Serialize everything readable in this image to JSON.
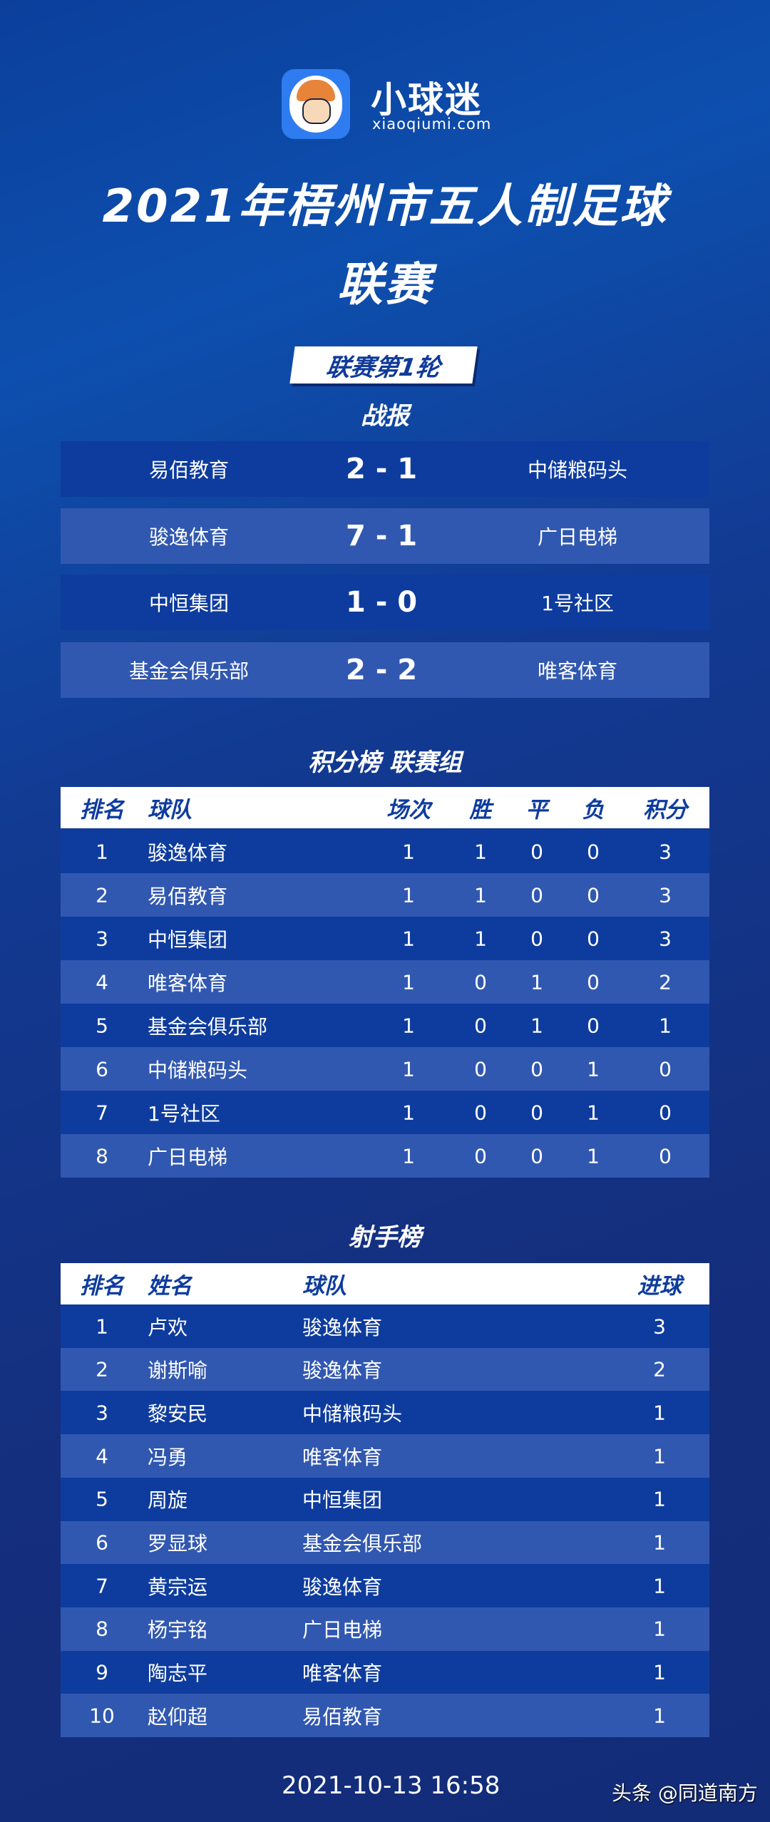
{
  "brand": {
    "name": "小球迷",
    "domain": "xiaoqiumi.com"
  },
  "title": {
    "line1": "2021年梧州市五人制足球",
    "line2": "联赛"
  },
  "round_badge": "联赛第1轮",
  "results": {
    "heading": "战报",
    "matches": [
      {
        "home": "易佰教育",
        "score": "2 - 1",
        "away": "中储粮码头"
      },
      {
        "home": "骏逸体育",
        "score": "7 - 1",
        "away": "广日电梯"
      },
      {
        "home": "中恒集团",
        "score": "1 - 0",
        "away": "1号社区"
      },
      {
        "home": "基金会俱乐部",
        "score": "2 - 2",
        "away": "唯客体育"
      }
    ]
  },
  "standings": {
    "heading": "积分榜  联赛组",
    "headers": [
      "排名",
      "球队",
      "场次",
      "胜",
      "平",
      "负",
      "积分"
    ],
    "rows": [
      [
        "1",
        "骏逸体育",
        "1",
        "1",
        "0",
        "0",
        "3"
      ],
      [
        "2",
        "易佰教育",
        "1",
        "1",
        "0",
        "0",
        "3"
      ],
      [
        "3",
        "中恒集团",
        "1",
        "1",
        "0",
        "0",
        "3"
      ],
      [
        "4",
        "唯客体育",
        "1",
        "0",
        "1",
        "0",
        "2"
      ],
      [
        "5",
        "基金会俱乐部",
        "1",
        "0",
        "1",
        "0",
        "1"
      ],
      [
        "6",
        "中储粮码头",
        "1",
        "0",
        "0",
        "1",
        "0"
      ],
      [
        "7",
        "1号社区",
        "1",
        "0",
        "0",
        "1",
        "0"
      ],
      [
        "8",
        "广日电梯",
        "1",
        "0",
        "0",
        "1",
        "0"
      ]
    ]
  },
  "scorers": {
    "heading": "射手榜",
    "headers": [
      "排名",
      "姓名",
      "球队",
      "进球"
    ],
    "rows": [
      [
        "1",
        "卢欢",
        "骏逸体育",
        "3"
      ],
      [
        "2",
        "谢斯喻",
        "骏逸体育",
        "2"
      ],
      [
        "3",
        "黎安民",
        "中储粮码头",
        "1"
      ],
      [
        "4",
        "冯勇",
        "唯客体育",
        "1"
      ],
      [
        "5",
        "周旋",
        "中恒集团",
        "1"
      ],
      [
        "6",
        "罗显球",
        "基金会俱乐部",
        "1"
      ],
      [
        "7",
        "黄宗运",
        "骏逸体育",
        "1"
      ],
      [
        "8",
        "杨宇铭",
        "广日电梯",
        "1"
      ],
      [
        "9",
        "陶志平",
        "唯客体育",
        "1"
      ],
      [
        "10",
        "赵仰超",
        "易佰教育",
        "1"
      ]
    ]
  },
  "footer": {
    "timestamp": "2021-10-13 16:58",
    "watermark": "头条 @同道南方"
  }
}
